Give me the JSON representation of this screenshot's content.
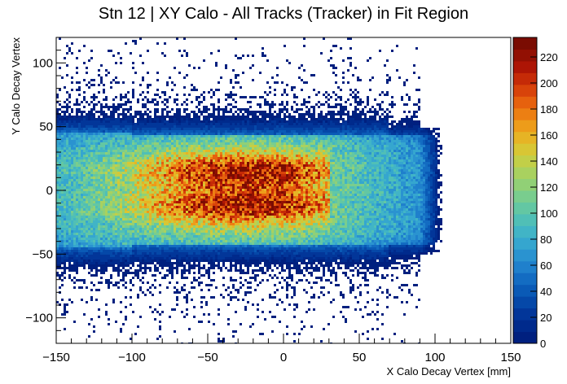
{
  "chart_data": {
    "type": "heatmap",
    "title": "Stn 12 | XY Calo - All Tracks (Tracker) in Fit Region",
    "xlabel": "X Calo Decay Vertex [mm]",
    "ylabel": "Y Calo Decay Vertex",
    "xlim": [
      -150,
      150
    ],
    "ylim": [
      -120,
      120
    ],
    "x_ticks": [
      -150,
      -100,
      -50,
      0,
      50,
      100,
      150
    ],
    "x_tick_labels": [
      "−150",
      "−100",
      "−50",
      "0",
      "50",
      "100",
      "150"
    ],
    "y_ticks": [
      -100,
      -50,
      0,
      50,
      100
    ],
    "y_tick_labels": [
      "−100",
      "−50",
      "0",
      "50",
      "100"
    ],
    "colorbar": {
      "min": 0,
      "max": 235,
      "ticks": [
        0,
        20,
        40,
        60,
        80,
        100,
        120,
        140,
        160,
        180,
        200,
        220
      ],
      "tick_labels": [
        "0",
        "20",
        "40",
        "60",
        "80",
        "100",
        "120",
        "140",
        "160",
        "180",
        "200",
        "220"
      ],
      "colors": [
        "#00207f",
        "#002a8c",
        "#023699",
        "#0548a8",
        "#0a5ab6",
        "#136cc2",
        "#1f80cc",
        "#2a93d0",
        "#35a6cf",
        "#41b4c6",
        "#50bfb6",
        "#63c7a3",
        "#79cd8e",
        "#91d076",
        "#a9d15f",
        "#c2cf48",
        "#d8c634",
        "#e6b425",
        "#ed9c1a",
        "#ec7f13",
        "#e6610e",
        "#d8430a",
        "#c52a07",
        "#ad1505",
        "#921003",
        "#7a0c02"
      ],
      "position": "right"
    },
    "grid": false,
    "density_model": {
      "x_band": [
        -150,
        105
      ],
      "core_y_halfwidth": 43,
      "peak_x": -25,
      "peak_y_lobes": [
        15,
        -12
      ],
      "peak_value": 230
    }
  }
}
